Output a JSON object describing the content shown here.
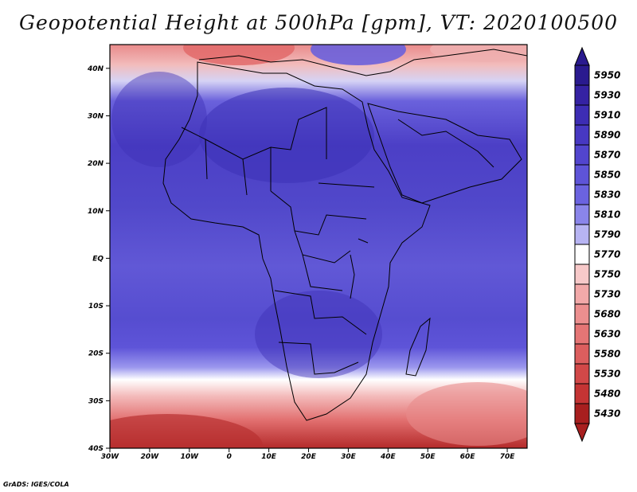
{
  "title": "Geopotential Height at 500hPa [gpm], VT: 2020100500",
  "credit": "GrADS: IGES/COLA",
  "map": {
    "lon_range": [
      -30,
      75
    ],
    "lat_range": [
      -40,
      45
    ],
    "lat_ticks": [
      {
        "value": 40,
        "label": "40N"
      },
      {
        "value": 30,
        "label": "30N"
      },
      {
        "value": 20,
        "label": "20N"
      },
      {
        "value": 10,
        "label": "10N"
      },
      {
        "value": 0,
        "label": "EQ"
      },
      {
        "value": -10,
        "label": "10S"
      },
      {
        "value": -20,
        "label": "20S"
      },
      {
        "value": -30,
        "label": "30S"
      },
      {
        "value": -40,
        "label": "40S"
      }
    ],
    "lon_ticks": [
      {
        "value": -30,
        "label": "30W"
      },
      {
        "value": -20,
        "label": "20W"
      },
      {
        "value": -10,
        "label": "10W"
      },
      {
        "value": 0,
        "label": "0"
      },
      {
        "value": 10,
        "label": "10E"
      },
      {
        "value": 20,
        "label": "20E"
      },
      {
        "value": 30,
        "label": "30E"
      },
      {
        "value": 40,
        "label": "40E"
      },
      {
        "value": 50,
        "label": "50E"
      },
      {
        "value": 60,
        "label": "60E"
      },
      {
        "value": 70,
        "label": "70E"
      }
    ]
  },
  "colorbar": {
    "levels": [
      {
        "label": "5950",
        "color": "#2a1a8f"
      },
      {
        "label": "5930",
        "color": "#3522a3"
      },
      {
        "label": "5910",
        "color": "#3d2db4"
      },
      {
        "label": "5890",
        "color": "#4738c2"
      },
      {
        "label": "5870",
        "color": "#5245ce"
      },
      {
        "label": "5850",
        "color": "#5e54d8"
      },
      {
        "label": "5830",
        "color": "#6b63e0"
      },
      {
        "label": "5810",
        "color": "#8a85ea"
      },
      {
        "label": "5790",
        "color": "#b7b4f3"
      },
      {
        "label": "5770",
        "color": "#ffffff"
      },
      {
        "label": "5750",
        "color": "#f7c9c9"
      },
      {
        "label": "5730",
        "color": "#f2a9a9"
      },
      {
        "label": "5680",
        "color": "#ec8f8f"
      },
      {
        "label": "5630",
        "color": "#e57575"
      },
      {
        "label": "5580",
        "color": "#dc5e5e"
      },
      {
        "label": "5530",
        "color": "#d24848"
      },
      {
        "label": "5480",
        "color": "#c43434"
      },
      {
        "label": "5430",
        "color": "#a81f1f"
      }
    ]
  }
}
